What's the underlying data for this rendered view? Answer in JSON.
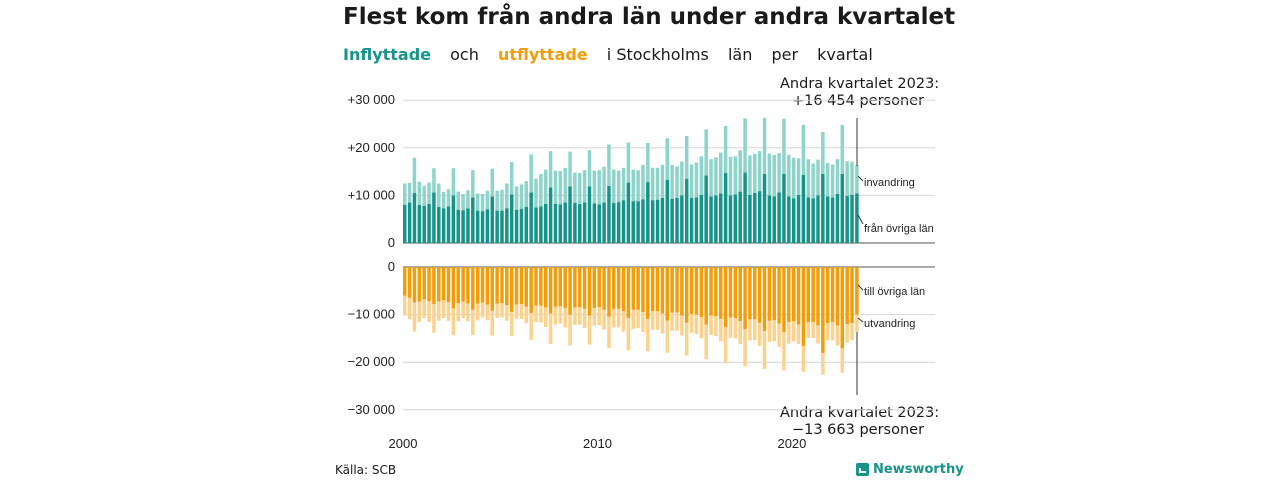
{
  "title": "Flest kom från andra län under andra kvartalet",
  "subtitle": {
    "in_word": "Inflyttade",
    "and_word": "och",
    "out_word": "utflyttade",
    "rest": [
      "i Stockholms",
      "län",
      "per",
      "kvartal"
    ]
  },
  "annotations": {
    "top": {
      "line1": "Andra kvartalet 2023:",
      "line2": "+16 454 personer"
    },
    "bottom": {
      "line1": "Andra kvartalet 2023:",
      "line2": "−13 663 personer"
    }
  },
  "source": "Källa: SCB",
  "brand": "Newsworthy",
  "colors": {
    "in_dark": "#16948a",
    "in_light": "#8fd4ca",
    "out_dark": "#f29d0a",
    "out_light": "#fbd28e"
  },
  "chart_data": {
    "type": "bar",
    "title": "Flest kom från andra län under andra kvartalet",
    "series_labels": {
      "in_other": "från övriga län",
      "in_immigration": "invandring",
      "out_other": "till övriga län",
      "out_emigration": "utvandring"
    },
    "y_top": {
      "range": [
        0,
        30000
      ],
      "ticks": [
        "+30 000",
        "+20 000",
        "+10 000",
        "0"
      ]
    },
    "y_bottom": {
      "range": [
        -30000,
        0
      ],
      "ticks": [
        "0",
        "−10 000",
        "−20 000",
        "−30 000"
      ]
    },
    "x_ticks": [
      "2000",
      "2010",
      "2020"
    ],
    "x_range": [
      "2000Q1",
      "2023Q2"
    ],
    "grid": true,
    "in_other": [
      8000,
      8500,
      10500,
      8000,
      7800,
      8200,
      10600,
      7600,
      7300,
      7700,
      10000,
      7000,
      6900,
      7300,
      9600,
      6800,
      6700,
      7100,
      9800,
      6800,
      6800,
      7300,
      10200,
      7000,
      7200,
      7600,
      10600,
      7500,
      7700,
      8200,
      11700,
      8200,
      8100,
      8500,
      11900,
      8400,
      8200,
      8500,
      11900,
      8300,
      8100,
      8500,
      12000,
      8400,
      8600,
      9000,
      12700,
      8800,
      8800,
      9200,
      12800,
      9000,
      9100,
      9500,
      13300,
      9300,
      9500,
      10000,
      13500,
      9500,
      9600,
      10100,
      14200,
      9800,
      10000,
      10400,
      14700,
      10000,
      10200,
      10800,
      14800,
      10100,
      10500,
      10900,
      14500,
      10000,
      9800,
      10600,
      14500,
      9800,
      9400,
      10100,
      14300,
      9600,
      9400,
      10000,
      14500,
      9800,
      9600,
      10300,
      14500,
      9900,
      10100,
      10400
    ],
    "in_immigration": [
      4500,
      4100,
      7400,
      4900,
      4200,
      4500,
      5100,
      4900,
      3400,
      3600,
      5700,
      3800,
      3400,
      3800,
      5700,
      3600,
      3600,
      3900,
      5800,
      4200,
      4400,
      5200,
      6800,
      4900,
      5100,
      5400,
      8000,
      6000,
      6800,
      7200,
      7600,
      7000,
      7000,
      7300,
      7300,
      6400,
      6500,
      6800,
      7600,
      6900,
      7200,
      7500,
      8700,
      7000,
      6600,
      6800,
      8400,
      6600,
      6500,
      7200,
      8200,
      6800,
      6700,
      6900,
      8700,
      7100,
      6600,
      7100,
      9000,
      7000,
      7300,
      8100,
      9700,
      7800,
      8000,
      8600,
      9900,
      8100,
      8000,
      8700,
      11400,
      8300,
      8200,
      8400,
      11800,
      8800,
      8700,
      8300,
      11600,
      8700,
      8500,
      7700,
      10500,
      8000,
      7300,
      7500,
      8800,
      7000,
      6900,
      7300,
      10300,
      7300,
      7000,
      6000
    ],
    "out_other": [
      6000,
      6500,
      7500,
      7300,
      6800,
      7200,
      7800,
      7300,
      7000,
      7400,
      8700,
      7600,
      7300,
      7700,
      9000,
      7700,
      7500,
      7900,
      9200,
      7700,
      7600,
      8000,
      9500,
      7900,
      7800,
      8300,
      9700,
      8100,
      8100,
      8500,
      9800,
      8300,
      8200,
      8600,
      10000,
      8500,
      8400,
      8800,
      10200,
      8600,
      8400,
      9000,
      10400,
      8800,
      8800,
      9300,
      10700,
      9000,
      9000,
      9500,
      10900,
      9300,
      9300,
      9800,
      11300,
      9600,
      9600,
      10200,
      11700,
      9900,
      10000,
      10500,
      12100,
      10200,
      10300,
      10900,
      12600,
      10600,
      10700,
      11400,
      13100,
      11000,
      11000,
      11700,
      13500,
      11300,
      11200,
      11900,
      13700,
      11600,
      11400,
      12100,
      16600,
      11600,
      11600,
      12300,
      18100,
      11800,
      11600,
      12300,
      17100,
      12000,
      11800,
      10000
    ],
    "out_emigration": [
      4200,
      4500,
      6100,
      4300,
      3900,
      4300,
      6000,
      4000,
      3700,
      3900,
      5600,
      3800,
      3400,
      3700,
      5300,
      3500,
      3100,
      3300,
      5200,
      3000,
      3000,
      3300,
      5000,
      3000,
      3100,
      3500,
      5600,
      3500,
      3600,
      4100,
      6400,
      3800,
      3700,
      4100,
      6500,
      3700,
      3700,
      4000,
      6100,
      3700,
      3800,
      4200,
      6600,
      3900,
      3900,
      4300,
      6800,
      4000,
      3800,
      4200,
      6800,
      3900,
      3900,
      4200,
      6700,
      3800,
      3800,
      4200,
      6900,
      3900,
      4100,
      4500,
      7300,
      4100,
      4200,
      4700,
      7600,
      4300,
      4300,
      4800,
      7800,
      4400,
      4400,
      4900,
      7900,
      4500,
      4400,
      4900,
      8000,
      4500,
      4200,
      4100,
      5400,
      3300,
      3300,
      3800,
      4500,
      3600,
      3800,
      4200,
      5100,
      3900,
      3600,
      3700
    ]
  }
}
